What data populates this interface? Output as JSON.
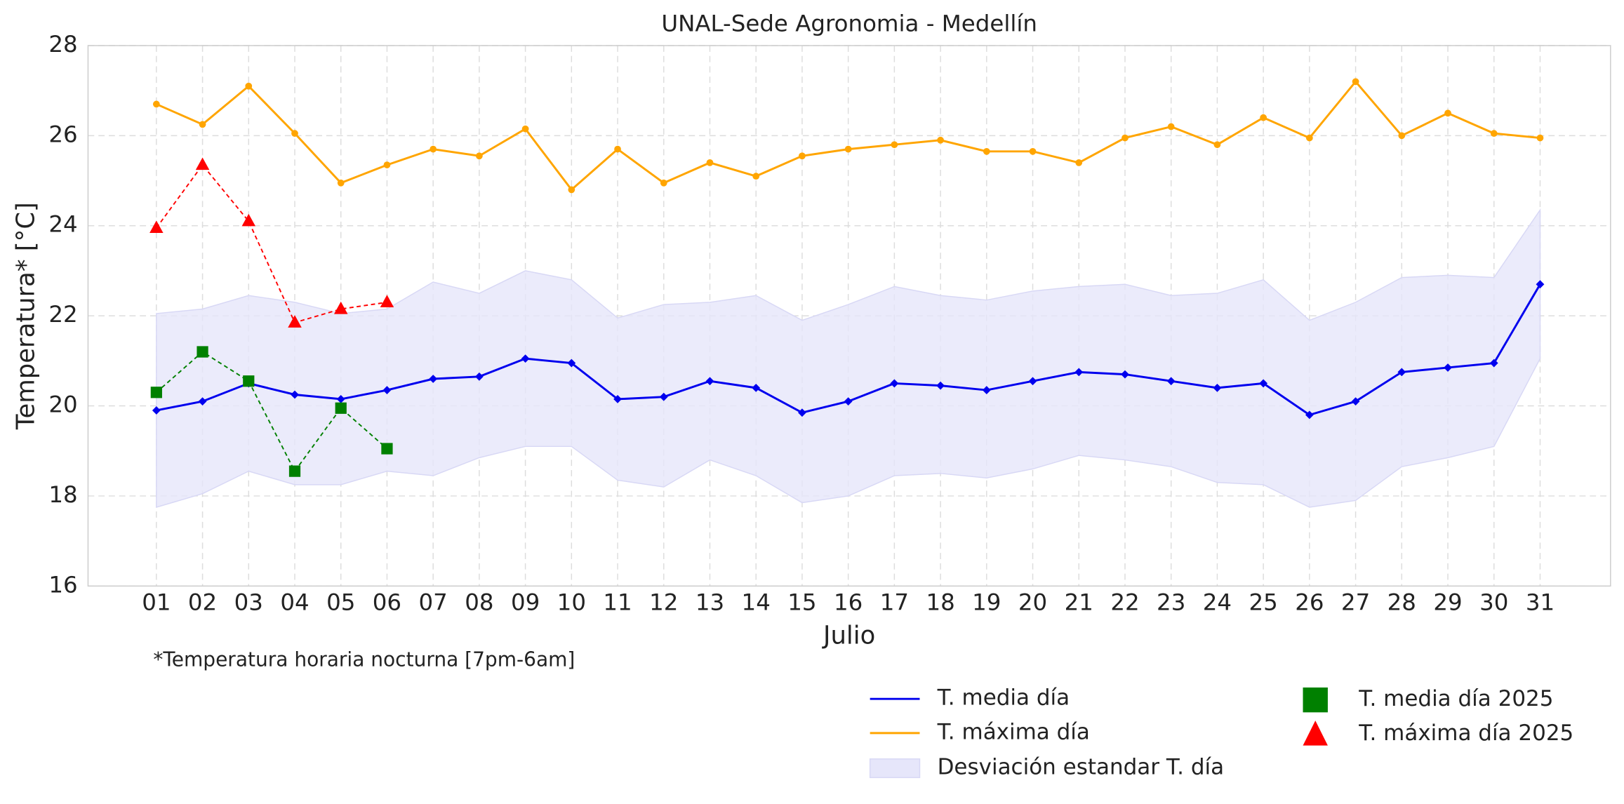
{
  "chart_data": {
    "type": "line",
    "title": "UNAL-Sede Agronomia - Medellín",
    "xlabel": "Julio",
    "ylabel": "Temperatura* [°C]",
    "annotation": "*Temperatura horaria nocturna [7pm-6am]",
    "categories": [
      "01",
      "02",
      "03",
      "04",
      "05",
      "06",
      "07",
      "08",
      "09",
      "10",
      "11",
      "12",
      "13",
      "14",
      "15",
      "16",
      "17",
      "18",
      "19",
      "20",
      "21",
      "22",
      "23",
      "24",
      "25",
      "26",
      "27",
      "28",
      "29",
      "30",
      "31"
    ],
    "ylim": [
      16,
      28
    ],
    "yticks": [
      16,
      18,
      20,
      22,
      24,
      26,
      28
    ],
    "grid": true,
    "series": [
      {
        "name": "T. media día",
        "color": "#0000ee",
        "kind": "line",
        "marker": "diamond",
        "values": [
          19.9,
          20.1,
          20.5,
          20.25,
          20.15,
          20.35,
          20.6,
          20.65,
          21.05,
          20.95,
          20.15,
          20.2,
          20.55,
          20.4,
          19.85,
          20.1,
          20.5,
          20.45,
          20.35,
          20.55,
          20.75,
          20.7,
          20.55,
          20.4,
          20.5,
          19.8,
          20.1,
          20.75,
          20.85,
          20.95,
          22.7
        ]
      },
      {
        "name": "T. máxima día",
        "color": "#ffa500",
        "kind": "line",
        "marker": "circle",
        "values": [
          26.7,
          26.25,
          27.1,
          26.05,
          24.95,
          25.35,
          25.7,
          25.55,
          26.15,
          24.8,
          25.7,
          24.95,
          25.4,
          25.1,
          25.55,
          25.7,
          25.8,
          25.9,
          25.65,
          25.65,
          25.4,
          25.95,
          26.2,
          25.8,
          26.4,
          25.95,
          27.2,
          26.0,
          26.5,
          26.05,
          25.95
        ]
      },
      {
        "name": "Desviación estandar T. día",
        "color": "#e6e6fa",
        "kind": "band",
        "upper": [
          22.05,
          22.15,
          22.45,
          22.3,
          22.05,
          22.15,
          22.75,
          22.5,
          23.0,
          22.8,
          21.95,
          22.25,
          22.3,
          22.45,
          21.9,
          22.25,
          22.65,
          22.45,
          22.35,
          22.55,
          22.65,
          22.7,
          22.45,
          22.5,
          22.8,
          21.9,
          22.3,
          22.85,
          22.9,
          22.85,
          24.35
        ],
        "lower": [
          17.75,
          18.05,
          18.55,
          18.25,
          18.25,
          18.55,
          18.45,
          18.85,
          19.1,
          19.1,
          18.35,
          18.2,
          18.8,
          18.45,
          17.85,
          18.0,
          18.45,
          18.5,
          18.4,
          18.6,
          18.9,
          18.8,
          18.65,
          18.3,
          18.25,
          17.75,
          17.9,
          18.65,
          18.85,
          19.1,
          21.05
        ]
      },
      {
        "name": "T. media día 2025",
        "color": "#008000",
        "kind": "dashed",
        "marker": "square",
        "values": [
          20.3,
          21.2,
          20.55,
          18.55,
          19.95,
          19.05,
          null,
          null,
          null,
          null,
          null,
          null,
          null,
          null,
          null,
          null,
          null,
          null,
          null,
          null,
          null,
          null,
          null,
          null,
          null,
          null,
          null,
          null,
          null,
          null,
          null
        ]
      },
      {
        "name": "T. máxima día 2025",
        "color": "#ff0000",
        "kind": "dashed",
        "marker": "triangle",
        "values": [
          23.95,
          25.35,
          24.1,
          21.85,
          22.15,
          22.3,
          null,
          null,
          null,
          null,
          null,
          null,
          null,
          null,
          null,
          null,
          null,
          null,
          null,
          null,
          null,
          null,
          null,
          null,
          null,
          null,
          null,
          null,
          null,
          null,
          null
        ]
      }
    ]
  }
}
